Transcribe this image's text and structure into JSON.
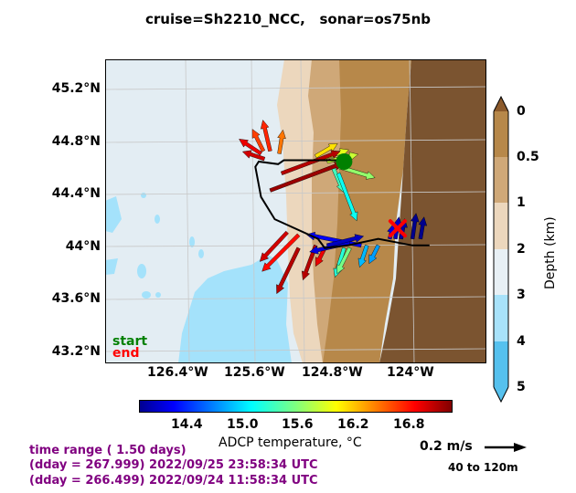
{
  "title": "cruise=Sh2210_NCC,   sonar=os75nb",
  "map": {
    "lat_labels": [
      "45.2°N",
      "44.8°N",
      "44.4°N",
      "44°N",
      "43.6°N",
      "43.2°N"
    ],
    "lon_labels": [
      "126.4°W",
      "125.6°W",
      "124.8°W",
      "124°W"
    ],
    "legend": {
      "start": "start",
      "end": "end",
      "start_color": "#008000",
      "end_color": "#ff0000"
    },
    "ship_track": [
      [
        -124.75,
        44.65
      ],
      [
        -125.28,
        44.65
      ],
      [
        -125.33,
        44.62
      ],
      [
        -125.5,
        44.64
      ],
      [
        -125.53,
        44.6
      ],
      [
        -125.48,
        44.37
      ],
      [
        -125.36,
        44.2
      ],
      [
        -124.98,
        44.05
      ],
      [
        -124.92,
        43.98
      ],
      [
        -124.72,
        44.0
      ],
      [
        -124.45,
        44.05
      ],
      [
        -124.15,
        44.0
      ],
      [
        -124.0,
        44.0
      ]
    ],
    "start_marker": [
      -124.75,
      44.64
    ],
    "end_marker": [
      -124.28,
      44.13
    ],
    "current_vectors": [
      {
        "lon": -125.4,
        "lat": 44.72,
        "u": -0.04,
        "v": 0.17,
        "temp": 17.0
      },
      {
        "lon": -125.46,
        "lat": 44.72,
        "u": -0.06,
        "v": 0.12,
        "temp": 16.9
      },
      {
        "lon": -125.48,
        "lat": 44.7,
        "u": -0.12,
        "v": 0.08,
        "temp": 17.2
      },
      {
        "lon": -125.32,
        "lat": 44.7,
        "u": 0.02,
        "v": 0.13,
        "temp": 16.7
      },
      {
        "lon": -125.45,
        "lat": 44.66,
        "u": -0.12,
        "v": 0.04,
        "temp": 17.3
      },
      {
        "lon": -125.0,
        "lat": 44.68,
        "u": 0.12,
        "v": 0.07,
        "temp": 16.3
      },
      {
        "lon": -124.95,
        "lat": 44.66,
        "u": 0.15,
        "v": 0.05,
        "temp": 16.1
      },
      {
        "lon": -124.9,
        "lat": 44.64,
        "u": 0.17,
        "v": 0.04,
        "temp": 16.0
      },
      {
        "lon": -124.8,
        "lat": 44.6,
        "u": 0.2,
        "v": -0.06,
        "temp": 15.8
      },
      {
        "lon": -124.85,
        "lat": 44.6,
        "u": 0.06,
        "v": -0.14,
        "temp": 15.5
      },
      {
        "lon": -124.8,
        "lat": 44.55,
        "u": 0.1,
        "v": -0.26,
        "temp": 15.3
      },
      {
        "lon": -125.3,
        "lat": 44.55,
        "u": 0.32,
        "v": 0.12,
        "temp": 17.4
      },
      {
        "lon": -125.4,
        "lat": 44.42,
        "u": 0.4,
        "v": 0.15,
        "temp": 17.5
      },
      {
        "lon": -125.15,
        "lat": 44.08,
        "u": -0.2,
        "v": -0.2,
        "temp": 17.1
      },
      {
        "lon": -125.25,
        "lat": 44.1,
        "u": -0.15,
        "v": -0.16,
        "temp": 17.3
      },
      {
        "lon": -125.15,
        "lat": 43.98,
        "u": -0.12,
        "v": -0.25,
        "temp": 17.4
      },
      {
        "lon": -125.0,
        "lat": 44.0,
        "u": -0.07,
        "v": -0.19,
        "temp": 17.4
      },
      {
        "lon": -124.92,
        "lat": 43.98,
        "u": -0.05,
        "v": -0.1,
        "temp": 17.2
      },
      {
        "lon": -124.75,
        "lat": 43.98,
        "u": -0.05,
        "v": -0.16,
        "temp": 15.4
      },
      {
        "lon": -124.7,
        "lat": 43.98,
        "u": -0.07,
        "v": -0.14,
        "temp": 15.7
      },
      {
        "lon": -124.55,
        "lat": 44.0,
        "u": -0.04,
        "v": -0.12,
        "temp": 15.0
      },
      {
        "lon": -124.45,
        "lat": 44.0,
        "u": -0.05,
        "v": -0.1,
        "temp": 14.9
      },
      {
        "lon": -124.35,
        "lat": 44.05,
        "u": 0.02,
        "v": 0.08,
        "temp": 14.2
      },
      {
        "lon": -124.3,
        "lat": 44.05,
        "u": 0.02,
        "v": 0.12,
        "temp": 14.1
      },
      {
        "lon": -124.25,
        "lat": 44.05,
        "u": 0.02,
        "v": 0.11,
        "temp": 14.0
      },
      {
        "lon": -124.15,
        "lat": 44.05,
        "u": 0.02,
        "v": 0.14,
        "temp": 13.9
      },
      {
        "lon": -124.08,
        "lat": 44.05,
        "u": 0.02,
        "v": 0.12,
        "temp": 13.9
      },
      {
        "lon": -124.6,
        "lat": 44.0,
        "u": -0.3,
        "v": 0.06,
        "temp": 14.3
      },
      {
        "lon": -124.7,
        "lat": 44.02,
        "u": -0.22,
        "v": -0.05,
        "temp": 14.2
      },
      {
        "lon": -124.9,
        "lat": 44.0,
        "u": 0.2,
        "v": 0.05,
        "temp": 14.1
      }
    ]
  },
  "depth_colorbar": {
    "label": "Depth (km)",
    "ticks": [
      "0",
      "0.5",
      "1",
      "2",
      "3",
      "4",
      "5"
    ],
    "colors": [
      "#8c5a2b",
      "#b7884a",
      "#cfa878",
      "#ecd7bd",
      "#e8f0f5",
      "#a8e2fa",
      "#56c1ee"
    ]
  },
  "temperature_colorbar": {
    "label": "ADCP temperature, °C",
    "ticks": [
      "14.4",
      "15.0",
      "15.6",
      "16.2",
      "16.8"
    ],
    "range": [
      13.85,
      17.6
    ]
  },
  "info": {
    "time_range": "time range ( 1.50 days)",
    "end_line": "(dday = 267.999) 2022/09/25 23:58:34 UTC",
    "start_line": "(dday = 266.499) 2022/09/24 11:58:34 UTC"
  },
  "scale": {
    "label": "0.2 m/s",
    "range": "40 to 120m"
  }
}
